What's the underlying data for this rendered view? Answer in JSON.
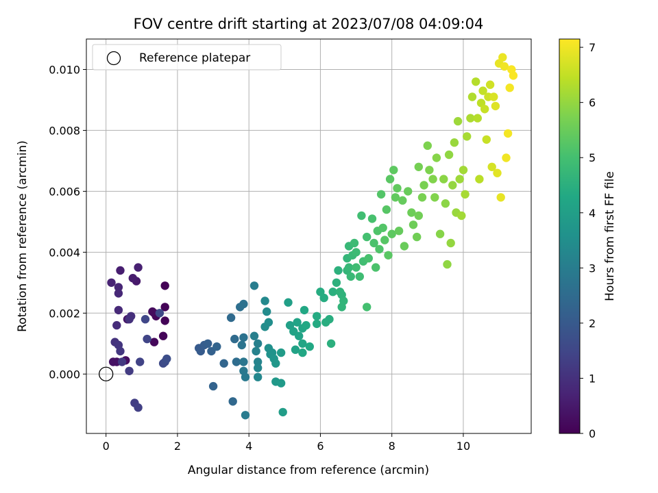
{
  "chart_data": {
    "type": "scatter",
    "title": "FOV centre drift starting at 2023/07/08 04:09:04",
    "xlabel": "Angular distance from reference (arcmin)",
    "ylabel": "Rotation from reference (arcmin)",
    "xlim": [
      -0.55,
      11.9
    ],
    "ylim": [
      -0.00195,
      0.011
    ],
    "x_ticks": [
      0,
      2,
      4,
      6,
      8,
      10
    ],
    "x_tick_labels": [
      "0",
      "2",
      "4",
      "6",
      "8",
      "10"
    ],
    "y_ticks": [
      0.0,
      0.002,
      0.004,
      0.006,
      0.008,
      0.01
    ],
    "y_tick_labels": [
      "0.000",
      "0.002",
      "0.004",
      "0.006",
      "0.008",
      "0.010"
    ],
    "grid": true,
    "legend": {
      "position": "top-left",
      "entries": [
        "Reference platepar"
      ]
    },
    "reference_point": {
      "x": 0,
      "y": 0
    },
    "colorbar": {
      "label": "Hours from first FF file",
      "range": [
        0,
        7.15
      ],
      "ticks": [
        0,
        1,
        2,
        3,
        4,
        5,
        6,
        7
      ],
      "tick_labels": [
        "0",
        "1",
        "2",
        "3",
        "4",
        "5",
        "6",
        "7"
      ],
      "colormap": "viridis"
    },
    "points": [
      [
        1.65,
        0.0029,
        0.05
      ],
      [
        1.65,
        0.0022,
        0.06
      ],
      [
        1.65,
        0.00175,
        0.07
      ],
      [
        1.6,
        0.00125,
        0.08
      ],
      [
        1.35,
        0.002,
        0.1
      ],
      [
        1.4,
        0.0019,
        0.12
      ],
      [
        1.35,
        0.00105,
        0.15
      ],
      [
        1.3,
        0.00205,
        0.2
      ],
      [
        0.55,
        0.00045,
        0.25
      ],
      [
        0.3,
        0.0004,
        0.3
      ],
      [
        0.2,
        0.0004,
        0.35
      ],
      [
        0.6,
        0.0018,
        0.4
      ],
      [
        0.85,
        0.00305,
        0.5
      ],
      [
        0.75,
        0.00315,
        0.55
      ],
      [
        0.4,
        0.0034,
        0.6
      ],
      [
        0.9,
        0.0035,
        0.65
      ],
      [
        0.15,
        0.003,
        0.7
      ],
      [
        0.35,
        0.00285,
        0.75
      ],
      [
        0.35,
        0.00265,
        0.8
      ],
      [
        0.35,
        0.0021,
        0.85
      ],
      [
        0.3,
        0.0016,
        0.9
      ],
      [
        0.7,
        0.0019,
        0.95
      ],
      [
        0.65,
        0.0018,
        1.0
      ],
      [
        0.25,
        0.00105,
        1.05
      ],
      [
        0.35,
        0.00095,
        1.1
      ],
      [
        0.4,
        0.00075,
        1.15
      ],
      [
        0.45,
        0.0004,
        1.2
      ],
      [
        0.65,
        0.0001,
        1.25
      ],
      [
        0.8,
        -0.00095,
        1.3
      ],
      [
        0.9,
        -0.0011,
        1.35
      ],
      [
        0.95,
        0.0004,
        1.4
      ],
      [
        1.15,
        0.00115,
        1.45
      ],
      [
        1.1,
        0.0018,
        1.5
      ],
      [
        1.5,
        0.002,
        1.55
      ],
      [
        1.6,
        0.00035,
        1.6
      ],
      [
        1.65,
        0.0004,
        1.65
      ],
      [
        1.7,
        0.0005,
        1.7
      ],
      [
        2.6,
        0.00085,
        2.0
      ],
      [
        2.65,
        0.00075,
        2.05
      ],
      [
        2.75,
        0.00095,
        2.1
      ],
      [
        2.85,
        0.001,
        2.15
      ],
      [
        2.95,
        0.00075,
        2.2
      ],
      [
        3.0,
        -0.0004,
        2.25
      ],
      [
        3.1,
        0.0009,
        2.3
      ],
      [
        3.3,
        0.00035,
        2.35
      ],
      [
        3.55,
        -0.0009,
        2.4
      ],
      [
        3.5,
        0.00185,
        2.45
      ],
      [
        3.6,
        0.00115,
        2.5
      ],
      [
        3.65,
        0.0004,
        2.55
      ],
      [
        3.75,
        0.0022,
        2.6
      ],
      [
        3.85,
        0.0023,
        2.65
      ],
      [
        3.85,
        0.0012,
        2.7
      ],
      [
        3.8,
        0.00095,
        2.75
      ],
      [
        3.85,
        0.0004,
        2.8
      ],
      [
        3.85,
        0.0001,
        2.85
      ],
      [
        3.9,
        -0.0001,
        2.9
      ],
      [
        3.9,
        -0.00135,
        2.95
      ],
      [
        4.15,
        0.0029,
        3.0
      ],
      [
        4.15,
        0.00125,
        3.05
      ],
      [
        4.25,
        0.001,
        3.1
      ],
      [
        4.2,
        0.00075,
        3.15
      ],
      [
        4.25,
        0.0004,
        3.2
      ],
      [
        4.25,
        0.0002,
        3.25
      ],
      [
        4.25,
        -0.0001,
        3.3
      ],
      [
        4.45,
        0.0024,
        3.35
      ],
      [
        4.5,
        0.00205,
        3.4
      ],
      [
        4.45,
        0.00155,
        3.45
      ],
      [
        4.55,
        0.0017,
        3.5
      ],
      [
        4.55,
        0.00085,
        3.55
      ],
      [
        4.6,
        0.00065,
        3.6
      ],
      [
        4.65,
        0.0007,
        3.65
      ],
      [
        4.7,
        0.0005,
        3.7
      ],
      [
        4.75,
        0.00035,
        3.75
      ],
      [
        4.75,
        -0.00025,
        3.8
      ],
      [
        4.9,
        -0.0003,
        3.85
      ],
      [
        4.9,
        0.0007,
        3.9
      ],
      [
        4.95,
        -0.00125,
        3.95
      ],
      [
        5.1,
        0.00235,
        4.0
      ],
      [
        5.15,
        0.0016,
        4.05
      ],
      [
        5.25,
        0.0014,
        4.1
      ],
      [
        5.3,
        0.0008,
        4.1
      ],
      [
        5.35,
        0.0017,
        4.15
      ],
      [
        5.4,
        0.00125,
        4.15
      ],
      [
        5.5,
        0.0015,
        4.2
      ],
      [
        5.5,
        0.001,
        4.2
      ],
      [
        5.5,
        0.0007,
        4.25
      ],
      [
        5.55,
        0.0021,
        4.25
      ],
      [
        5.6,
        0.0016,
        4.3
      ],
      [
        5.7,
        0.0009,
        4.3
      ],
      [
        5.9,
        0.0019,
        4.35
      ],
      [
        5.9,
        0.00165,
        4.35
      ],
      [
        6.0,
        0.0027,
        4.4
      ],
      [
        6.1,
        0.0025,
        4.4
      ],
      [
        6.15,
        0.0017,
        4.45
      ],
      [
        6.25,
        0.0018,
        4.45
      ],
      [
        6.3,
        0.001,
        4.5
      ],
      [
        6.35,
        0.0027,
        4.5
      ],
      [
        6.45,
        0.003,
        4.55
      ],
      [
        6.5,
        0.0034,
        4.55
      ],
      [
        6.55,
        0.0027,
        4.6
      ],
      [
        6.6,
        0.0026,
        4.6
      ],
      [
        6.6,
        0.0022,
        4.65
      ],
      [
        6.65,
        0.0024,
        4.65
      ],
      [
        6.75,
        0.0038,
        4.7
      ],
      [
        6.75,
        0.0034,
        4.7
      ],
      [
        6.8,
        0.0042,
        4.75
      ],
      [
        6.8,
        0.0035,
        4.75
      ],
      [
        6.85,
        0.0032,
        4.8
      ],
      [
        6.9,
        0.0039,
        4.8
      ],
      [
        6.95,
        0.0043,
        4.85
      ],
      [
        7.0,
        0.004,
        4.85
      ],
      [
        7.0,
        0.0035,
        4.9
      ],
      [
        7.1,
        0.0032,
        4.9
      ],
      [
        7.15,
        0.0052,
        4.95
      ],
      [
        7.2,
        0.0037,
        4.95
      ],
      [
        7.3,
        0.0045,
        5.0
      ],
      [
        7.3,
        0.0022,
        5.0
      ],
      [
        7.35,
        0.0038,
        5.05
      ],
      [
        7.45,
        0.0051,
        5.05
      ],
      [
        7.5,
        0.0043,
        5.1
      ],
      [
        7.55,
        0.0035,
        5.1
      ],
      [
        7.6,
        0.0047,
        5.15
      ],
      [
        7.65,
        0.0041,
        5.15
      ],
      [
        7.7,
        0.0059,
        5.2
      ],
      [
        7.75,
        0.0048,
        5.2
      ],
      [
        7.8,
        0.0044,
        5.25
      ],
      [
        7.85,
        0.0054,
        5.25
      ],
      [
        7.9,
        0.0039,
        5.3
      ],
      [
        7.95,
        0.0064,
        5.3
      ],
      [
        8.0,
        0.0046,
        5.35
      ],
      [
        8.05,
        0.0067,
        5.35
      ],
      [
        8.1,
        0.0058,
        5.4
      ],
      [
        8.15,
        0.0061,
        5.4
      ],
      [
        8.2,
        0.0047,
        5.45
      ],
      [
        8.3,
        0.0057,
        5.45
      ],
      [
        8.35,
        0.0042,
        5.5
      ],
      [
        8.45,
        0.006,
        5.5
      ],
      [
        8.55,
        0.0053,
        5.55
      ],
      [
        8.6,
        0.0049,
        5.55
      ],
      [
        8.7,
        0.0045,
        5.6
      ],
      [
        8.75,
        0.0052,
        5.6
      ],
      [
        8.75,
        0.0068,
        5.65
      ],
      [
        8.85,
        0.0058,
        5.7
      ],
      [
        8.9,
        0.0062,
        5.7
      ],
      [
        9.0,
        0.0075,
        5.75
      ],
      [
        9.05,
        0.0067,
        5.75
      ],
      [
        9.15,
        0.0064,
        5.8
      ],
      [
        9.2,
        0.0058,
        5.8
      ],
      [
        9.25,
        0.0071,
        5.85
      ],
      [
        9.35,
        0.0046,
        5.85
      ],
      [
        9.45,
        0.0064,
        5.9
      ],
      [
        9.5,
        0.0056,
        5.9
      ],
      [
        9.55,
        0.0036,
        5.95
      ],
      [
        9.6,
        0.0072,
        5.95
      ],
      [
        9.65,
        0.0043,
        6.0
      ],
      [
        9.7,
        0.0062,
        6.0
      ],
      [
        9.75,
        0.0076,
        6.05
      ],
      [
        9.8,
        0.0053,
        6.05
      ],
      [
        9.85,
        0.0083,
        6.1
      ],
      [
        9.9,
        0.0064,
        6.1
      ],
      [
        9.95,
        0.0052,
        6.15
      ],
      [
        10.0,
        0.0067,
        6.15
      ],
      [
        10.05,
        0.0059,
        6.2
      ],
      [
        10.1,
        0.0078,
        6.2
      ],
      [
        10.2,
        0.0084,
        6.25
      ],
      [
        10.25,
        0.0091,
        6.3
      ],
      [
        10.35,
        0.0096,
        6.35
      ],
      [
        10.4,
        0.0084,
        6.35
      ],
      [
        10.45,
        0.0064,
        6.4
      ],
      [
        10.5,
        0.0089,
        6.45
      ],
      [
        10.55,
        0.0093,
        6.5
      ],
      [
        10.6,
        0.0087,
        6.55
      ],
      [
        10.65,
        0.0077,
        6.55
      ],
      [
        10.7,
        0.0091,
        6.6
      ],
      [
        10.75,
        0.0095,
        6.65
      ],
      [
        10.8,
        0.0068,
        6.7
      ],
      [
        10.85,
        0.0091,
        6.75
      ],
      [
        10.9,
        0.0088,
        6.8
      ],
      [
        10.95,
        0.0066,
        6.85
      ],
      [
        11.0,
        0.0102,
        6.9
      ],
      [
        11.05,
        0.0058,
        6.9
      ],
      [
        11.1,
        0.0104,
        6.95
      ],
      [
        11.15,
        0.0101,
        7.0
      ],
      [
        11.2,
        0.0071,
        7.0
      ],
      [
        11.25,
        0.0079,
        7.05
      ],
      [
        11.3,
        0.0094,
        7.05
      ],
      [
        11.35,
        0.01,
        7.1
      ],
      [
        11.4,
        0.0098,
        7.1
      ]
    ]
  }
}
